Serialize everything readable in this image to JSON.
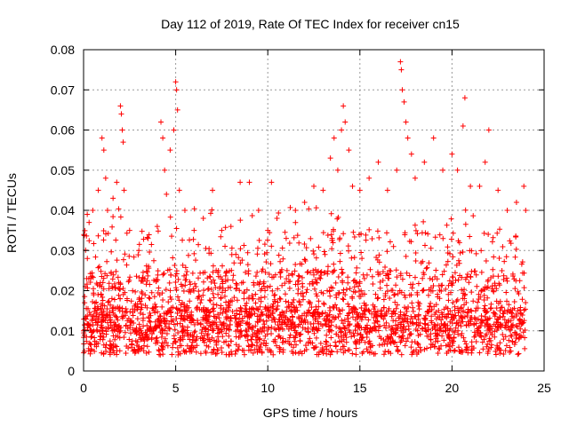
{
  "chart_data": {
    "type": "scatter",
    "title": "Day 112 of 2019, Rate Of TEC Index for receiver cn15",
    "xlabel": "GPS time / hours",
    "ylabel": "ROTI / TECUs",
    "xlim": [
      0,
      25
    ],
    "ylim": [
      0,
      0.08
    ],
    "xticks": [
      "0",
      "5",
      "10",
      "15",
      "20",
      "25"
    ],
    "xtick_values": [
      0,
      5,
      10,
      15,
      20,
      25
    ],
    "yticks": [
      "0",
      "0.01",
      "0.02",
      "0.03",
      "0.04",
      "0.05",
      "0.06",
      "0.07",
      "0.08"
    ],
    "ytick_values": [
      0,
      0.01,
      0.02,
      0.03,
      0.04,
      0.05,
      0.06,
      0.07,
      0.08
    ],
    "grid": true,
    "marker": "+",
    "color": "#ff0000",
    "series": [
      {
        "name": "ROTI",
        "points": [
          [
            0.2,
            0.039
          ],
          [
            0.3,
            0.037
          ],
          [
            0.5,
            0.04
          ],
          [
            0.8,
            0.045
          ],
          [
            1.0,
            0.058
          ],
          [
            1.1,
            0.055
          ],
          [
            1.2,
            0.048
          ],
          [
            1.3,
            0.04
          ],
          [
            1.6,
            0.043
          ],
          [
            1.8,
            0.047
          ],
          [
            2.0,
            0.066
          ],
          [
            2.05,
            0.064
          ],
          [
            2.1,
            0.06
          ],
          [
            2.15,
            0.057
          ],
          [
            2.2,
            0.045
          ],
          [
            2.5,
            0.035
          ],
          [
            3.0,
            0.03
          ],
          [
            3.5,
            0.033
          ],
          [
            4.0,
            0.036
          ],
          [
            4.2,
            0.062
          ],
          [
            4.3,
            0.058
          ],
          [
            4.4,
            0.05
          ],
          [
            4.5,
            0.044
          ],
          [
            4.7,
            0.055
          ],
          [
            4.9,
            0.06
          ],
          [
            5.0,
            0.072
          ],
          [
            5.05,
            0.07
          ],
          [
            5.1,
            0.065
          ],
          [
            5.2,
            0.045
          ],
          [
            5.5,
            0.04
          ],
          [
            6.0,
            0.035
          ],
          [
            6.5,
            0.038
          ],
          [
            7.0,
            0.045
          ],
          [
            7.5,
            0.035
          ],
          [
            8.0,
            0.036
          ],
          [
            8.5,
            0.047
          ],
          [
            9.0,
            0.047
          ],
          [
            9.5,
            0.04
          ],
          [
            10.0,
            0.035
          ],
          [
            10.2,
            0.047
          ],
          [
            10.5,
            0.038
          ],
          [
            11.0,
            0.033
          ],
          [
            11.5,
            0.04
          ],
          [
            12.0,
            0.042
          ],
          [
            12.5,
            0.046
          ],
          [
            13.0,
            0.045
          ],
          [
            13.4,
            0.053
          ],
          [
            13.6,
            0.058
          ],
          [
            13.8,
            0.05
          ],
          [
            14.0,
            0.06
          ],
          [
            14.1,
            0.066
          ],
          [
            14.2,
            0.062
          ],
          [
            14.4,
            0.055
          ],
          [
            14.6,
            0.046
          ],
          [
            15.0,
            0.045
          ],
          [
            15.5,
            0.048
          ],
          [
            16.0,
            0.052
          ],
          [
            16.5,
            0.045
          ],
          [
            17.0,
            0.05
          ],
          [
            17.2,
            0.077
          ],
          [
            17.25,
            0.075
          ],
          [
            17.3,
            0.07
          ],
          [
            17.4,
            0.067
          ],
          [
            17.5,
            0.062
          ],
          [
            17.6,
            0.058
          ],
          [
            17.8,
            0.054
          ],
          [
            18.0,
            0.048
          ],
          [
            18.5,
            0.052
          ],
          [
            19.0,
            0.058
          ],
          [
            19.5,
            0.05
          ],
          [
            20.0,
            0.054
          ],
          [
            20.3,
            0.05
          ],
          [
            20.6,
            0.061
          ],
          [
            20.7,
            0.068
          ],
          [
            21.0,
            0.046
          ],
          [
            21.5,
            0.046
          ],
          [
            21.8,
            0.052
          ],
          [
            22.0,
            0.06
          ],
          [
            22.5,
            0.045
          ],
          [
            23.0,
            0.04
          ],
          [
            23.5,
            0.042
          ],
          [
            23.9,
            0.046
          ],
          [
            24.0,
            0.04
          ]
        ]
      }
    ]
  }
}
